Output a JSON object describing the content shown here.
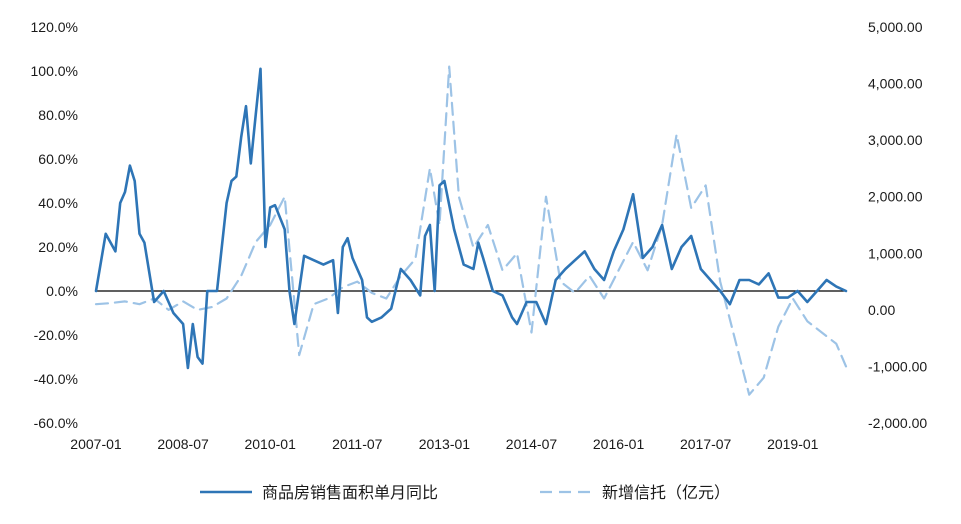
{
  "chart_data": {
    "type": "line",
    "x_ticks": [
      "2007-01",
      "2008-07",
      "2010-01",
      "2011-07",
      "2013-01",
      "2014-07",
      "2016-01",
      "2017-07",
      "2019-01"
    ],
    "x_range": [
      "2007-01",
      "2019-12"
    ],
    "y_left": {
      "min": -60,
      "max": 120,
      "step": 20,
      "tick_labels": [
        "120.0%",
        "100.0%",
        "80.0%",
        "60.0%",
        "40.0%",
        "20.0%",
        "0.0%",
        "-20.0%",
        "-40.0%",
        "-60.0%"
      ]
    },
    "y_right": {
      "min": -2000,
      "max": 5000,
      "step": 1000,
      "tick_labels": [
        "5,000.00",
        "4,000.00",
        "3,000.00",
        "2,000.00",
        "1,000.00",
        "0.00",
        "-1,000.00",
        "-2,000.00"
      ]
    },
    "grid": false,
    "legend_position": "bottom",
    "series": [
      {
        "name": "商品房销售面积单月同比",
        "axis": "left",
        "color": "#2E75B6",
        "style": "solid",
        "points": [
          [
            "2007-01",
            0
          ],
          [
            "2007-03",
            26
          ],
          [
            "2007-05",
            18
          ],
          [
            "2007-06",
            40
          ],
          [
            "2007-07",
            45
          ],
          [
            "2007-08",
            57
          ],
          [
            "2007-09",
            50
          ],
          [
            "2007-10",
            26
          ],
          [
            "2007-11",
            22
          ],
          [
            "2008-01",
            -5
          ],
          [
            "2008-03",
            0
          ],
          [
            "2008-05",
            -10
          ],
          [
            "2008-07",
            -15
          ],
          [
            "2008-08",
            -35
          ],
          [
            "2008-09",
            -15
          ],
          [
            "2008-10",
            -30
          ],
          [
            "2008-11",
            -33
          ],
          [
            "2008-12",
            0
          ],
          [
            "2009-02",
            0
          ],
          [
            "2009-04",
            40
          ],
          [
            "2009-05",
            50
          ],
          [
            "2009-06",
            52
          ],
          [
            "2009-07",
            70
          ],
          [
            "2009-08",
            84
          ],
          [
            "2009-09",
            58
          ],
          [
            "2009-10",
            80
          ],
          [
            "2009-11",
            101
          ],
          [
            "2009-12",
            20
          ],
          [
            "2010-01",
            38
          ],
          [
            "2010-02",
            39
          ],
          [
            "2010-04",
            28
          ],
          [
            "2010-05",
            0
          ],
          [
            "2010-06",
            -15
          ],
          [
            "2010-08",
            16
          ],
          [
            "2010-10",
            14
          ],
          [
            "2010-12",
            12
          ],
          [
            "2011-02",
            14
          ],
          [
            "2011-03",
            -10
          ],
          [
            "2011-04",
            20
          ],
          [
            "2011-05",
            24
          ],
          [
            "2011-06",
            15
          ],
          [
            "2011-08",
            5
          ],
          [
            "2011-09",
            -12
          ],
          [
            "2011-10",
            -14
          ],
          [
            "2011-12",
            -12
          ],
          [
            "2012-02",
            -8
          ],
          [
            "2012-04",
            10
          ],
          [
            "2012-06",
            5
          ],
          [
            "2012-08",
            -2
          ],
          [
            "2012-09",
            25
          ],
          [
            "2012-10",
            30
          ],
          [
            "2012-11",
            0
          ],
          [
            "2012-12",
            48
          ],
          [
            "2013-01",
            50
          ],
          [
            "2013-03",
            28
          ],
          [
            "2013-05",
            12
          ],
          [
            "2013-07",
            10
          ],
          [
            "2013-08",
            22
          ],
          [
            "2013-09",
            15
          ],
          [
            "2013-11",
            0
          ],
          [
            "2014-01",
            -2
          ],
          [
            "2014-03",
            -12
          ],
          [
            "2014-04",
            -15
          ],
          [
            "2014-06",
            -5
          ],
          [
            "2014-08",
            -5
          ],
          [
            "2014-10",
            -15
          ],
          [
            "2014-12",
            5
          ],
          [
            "2015-02",
            10
          ],
          [
            "2015-04",
            14
          ],
          [
            "2015-06",
            18
          ],
          [
            "2015-08",
            10
          ],
          [
            "2015-10",
            5
          ],
          [
            "2015-12",
            18
          ],
          [
            "2016-02",
            28
          ],
          [
            "2016-04",
            44
          ],
          [
            "2016-06",
            15
          ],
          [
            "2016-08",
            20
          ],
          [
            "2016-10",
            30
          ],
          [
            "2016-12",
            10
          ],
          [
            "2017-02",
            20
          ],
          [
            "2017-04",
            25
          ],
          [
            "2017-06",
            10
          ],
          [
            "2017-08",
            5
          ],
          [
            "2017-10",
            0
          ],
          [
            "2017-12",
            -6
          ],
          [
            "2018-02",
            5
          ],
          [
            "2018-04",
            5
          ],
          [
            "2018-06",
            3
          ],
          [
            "2018-08",
            8
          ],
          [
            "2018-10",
            -3
          ],
          [
            "2018-12",
            -3
          ],
          [
            "2019-02",
            0
          ],
          [
            "2019-04",
            -5
          ],
          [
            "2019-06",
            0
          ],
          [
            "2019-08",
            5
          ],
          [
            "2019-10",
            2
          ],
          [
            "2019-12",
            0
          ]
        ]
      },
      {
        "name": "新增信托（亿元）",
        "axis": "right",
        "color": "#9DC3E6",
        "style": "dashed",
        "points": [
          [
            "2007-01",
            100
          ],
          [
            "2007-04",
            120
          ],
          [
            "2007-07",
            150
          ],
          [
            "2007-10",
            100
          ],
          [
            "2008-01",
            200
          ],
          [
            "2008-04",
            0
          ],
          [
            "2008-07",
            150
          ],
          [
            "2008-10",
            0
          ],
          [
            "2009-01",
            50
          ],
          [
            "2009-04",
            200
          ],
          [
            "2009-07",
            600
          ],
          [
            "2009-10",
            1200
          ],
          [
            "2010-01",
            1500
          ],
          [
            "2010-04",
            2000
          ],
          [
            "2010-07",
            -800
          ],
          [
            "2010-10",
            100
          ],
          [
            "2011-01",
            200
          ],
          [
            "2011-04",
            400
          ],
          [
            "2011-07",
            500
          ],
          [
            "2011-10",
            300
          ],
          [
            "2012-01",
            200
          ],
          [
            "2012-04",
            600
          ],
          [
            "2012-07",
            900
          ],
          [
            "2012-10",
            2500
          ],
          [
            "2012-12",
            1500
          ],
          [
            "2013-02",
            4300
          ],
          [
            "2013-04",
            2000
          ],
          [
            "2013-07",
            1100
          ],
          [
            "2013-10",
            1500
          ],
          [
            "2014-01",
            700
          ],
          [
            "2014-04",
            1000
          ],
          [
            "2014-07",
            -400
          ],
          [
            "2014-10",
            2000
          ],
          [
            "2015-01",
            500
          ],
          [
            "2015-04",
            300
          ],
          [
            "2015-07",
            600
          ],
          [
            "2015-10",
            200
          ],
          [
            "2016-01",
            700
          ],
          [
            "2016-04",
            1200
          ],
          [
            "2016-07",
            700
          ],
          [
            "2016-10",
            1500
          ],
          [
            "2017-01",
            3100
          ],
          [
            "2017-04",
            1800
          ],
          [
            "2017-07",
            2200
          ],
          [
            "2017-10",
            500
          ],
          [
            "2018-01",
            -500
          ],
          [
            "2018-04",
            -1500
          ],
          [
            "2018-07",
            -1200
          ],
          [
            "2018-10",
            -300
          ],
          [
            "2019-01",
            200
          ],
          [
            "2019-04",
            -200
          ],
          [
            "2019-07",
            -400
          ],
          [
            "2019-10",
            -600
          ],
          [
            "2019-12",
            -1000
          ]
        ]
      }
    ]
  }
}
